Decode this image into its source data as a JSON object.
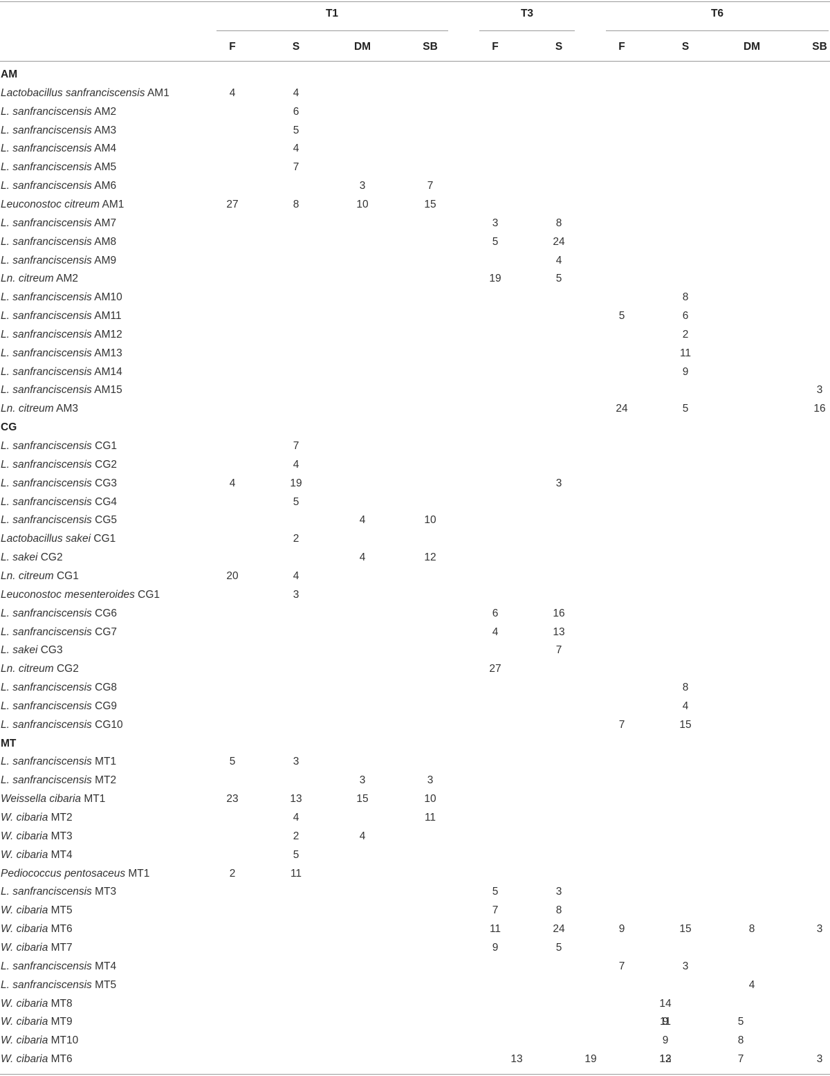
{
  "header": {
    "groups": [
      {
        "label": "T1"
      },
      {
        "label": "T3"
      },
      {
        "label": "T6"
      }
    ],
    "subcols": [
      "F",
      "S",
      "DM",
      "SB",
      "F",
      "S",
      "F",
      "S",
      "DM",
      "SB"
    ]
  },
  "rows": [
    {
      "type": "section",
      "label": "AM"
    },
    {
      "type": "data",
      "italic": "Lactobacillus sanfranciscensis",
      "suffix": " AM1",
      "cells": [
        "4",
        "4",
        "",
        "",
        "",
        "",
        "",
        "",
        "",
        ""
      ]
    },
    {
      "type": "data",
      "italic": "L. sanfranciscensis",
      "suffix": " AM2",
      "cells": [
        "",
        "6",
        "",
        "",
        "",
        "",
        "",
        "",
        "",
        ""
      ]
    },
    {
      "type": "data",
      "italic": "L. sanfranciscensis",
      "suffix": " AM3",
      "cells": [
        "",
        "5",
        "",
        "",
        "",
        "",
        "",
        "",
        "",
        ""
      ]
    },
    {
      "type": "data",
      "italic": "L. sanfranciscensis",
      "suffix": " AM4",
      "cells": [
        "",
        "4",
        "",
        "",
        "",
        "",
        "",
        "",
        "",
        ""
      ]
    },
    {
      "type": "data",
      "italic": "L. sanfranciscensis",
      "suffix": " AM5",
      "cells": [
        "",
        "7",
        "",
        "",
        "",
        "",
        "",
        "",
        "",
        ""
      ]
    },
    {
      "type": "data",
      "italic": "L. sanfranciscensis",
      "suffix": " AM6",
      "cells": [
        "",
        "",
        "3",
        "7",
        "",
        "",
        "",
        "",
        "",
        ""
      ]
    },
    {
      "type": "data",
      "italic": "Leuconostoc citreum",
      "suffix": " AM1",
      "cells": [
        "27",
        "8",
        "10",
        "15",
        "",
        "",
        "",
        "",
        "",
        ""
      ]
    },
    {
      "type": "data",
      "italic": "L. sanfranciscensis",
      "suffix": " AM7",
      "cells": [
        "",
        "",
        "",
        "",
        "3",
        "8",
        "",
        "",
        "",
        ""
      ]
    },
    {
      "type": "data",
      "italic": "L. sanfranciscensis",
      "suffix": " AM8",
      "cells": [
        "",
        "",
        "",
        "",
        "5",
        "24",
        "",
        "",
        "",
        ""
      ]
    },
    {
      "type": "data",
      "italic": "L. sanfranciscensis",
      "suffix": " AM9",
      "cells": [
        "",
        "",
        "",
        "",
        "",
        "4",
        "",
        "",
        "",
        ""
      ]
    },
    {
      "type": "data",
      "italic": "Ln. citreum",
      "suffix": " AM2",
      "cells": [
        "",
        "",
        "",
        "",
        "19",
        "5",
        "",
        "",
        "",
        ""
      ]
    },
    {
      "type": "data",
      "italic": "L. sanfranciscensis",
      "suffix": " AM10",
      "cells": [
        "",
        "",
        "",
        "",
        "",
        "",
        "",
        "8",
        "",
        ""
      ]
    },
    {
      "type": "data",
      "italic": "L. sanfranciscensis",
      "suffix": " AM11",
      "cells": [
        "",
        "",
        "",
        "",
        "",
        "",
        "5",
        "6",
        "",
        ""
      ]
    },
    {
      "type": "data",
      "italic": "L. sanfranciscensis",
      "suffix": " AM12",
      "cells": [
        "",
        "",
        "",
        "",
        "",
        "",
        "",
        "2",
        "",
        ""
      ]
    },
    {
      "type": "data",
      "italic": "L. sanfranciscensis",
      "suffix": " AM13",
      "cells": [
        "",
        "",
        "",
        "",
        "",
        "",
        "",
        "11",
        "",
        ""
      ]
    },
    {
      "type": "data",
      "italic": "L. sanfranciscensis",
      "suffix": " AM14",
      "cells": [
        "",
        "",
        "",
        "",
        "",
        "",
        "",
        "9",
        "",
        ""
      ]
    },
    {
      "type": "data",
      "italic": "L. sanfranciscensis",
      "suffix": " AM15",
      "cells": [
        "",
        "",
        "",
        "",
        "",
        "",
        "",
        "",
        "",
        "3"
      ]
    },
    {
      "type": "data",
      "italic": "Ln. citreum",
      "suffix": " AM3",
      "cells": [
        "",
        "",
        "",
        "",
        "",
        "",
        "24",
        "5",
        "",
        "16"
      ]
    },
    {
      "type": "section",
      "label": "CG"
    },
    {
      "type": "data",
      "italic": "L. sanfranciscensis",
      "suffix": " CG1",
      "cells": [
        "",
        "7",
        "",
        "",
        "",
        "",
        "",
        "",
        "",
        ""
      ]
    },
    {
      "type": "data",
      "italic": "L. sanfranciscensis",
      "suffix": " CG2",
      "cells": [
        "",
        "4",
        "",
        "",
        "",
        "",
        "",
        "",
        "",
        ""
      ]
    },
    {
      "type": "data",
      "italic": "L. sanfranciscensis",
      "suffix": " CG3",
      "cells": [
        "4",
        "19",
        "",
        "",
        "",
        "3",
        "",
        "",
        "",
        ""
      ]
    },
    {
      "type": "data",
      "italic": "L. sanfranciscensis",
      "suffix": " CG4",
      "cells": [
        "",
        "5",
        "",
        "",
        "",
        "",
        "",
        "",
        "",
        ""
      ]
    },
    {
      "type": "data",
      "italic": "L. sanfranciscensis",
      "suffix": " CG5",
      "cells": [
        "",
        "",
        "4",
        "10",
        "",
        "",
        "",
        "",
        "",
        ""
      ]
    },
    {
      "type": "data",
      "italic": "Lactobacillus sakei",
      "suffix": " CG1",
      "cells": [
        "",
        "2",
        "",
        "",
        "",
        "",
        "",
        "",
        "",
        ""
      ]
    },
    {
      "type": "data",
      "italic": "L. sakei",
      "suffix": " CG2",
      "cells": [
        "",
        "",
        "4",
        "12",
        "",
        "",
        "",
        "",
        "",
        ""
      ]
    },
    {
      "type": "data",
      "italic": "Ln. citreum",
      "suffix": " CG1",
      "cells": [
        "20",
        "4",
        "",
        "",
        "",
        "",
        "",
        "",
        "",
        ""
      ]
    },
    {
      "type": "data",
      "italic": "Leuconostoc mesenteroides",
      "suffix": " CG1",
      "cells": [
        "",
        "3",
        "",
        "",
        "",
        "",
        "",
        "",
        "",
        ""
      ]
    },
    {
      "type": "data",
      "italic": "L. sanfranciscensis",
      "suffix": " CG6",
      "cells": [
        "",
        "",
        "",
        "",
        "6",
        "16",
        "",
        "",
        "",
        ""
      ]
    },
    {
      "type": "data",
      "italic": "L. sanfranciscensis",
      "suffix": " CG7",
      "cells": [
        "",
        "",
        "",
        "",
        "4",
        "13",
        "",
        "",
        "",
        ""
      ]
    },
    {
      "type": "data",
      "italic": "L. sakei",
      "suffix": " CG3",
      "cells": [
        "",
        "",
        "",
        "",
        "",
        "7",
        "",
        "",
        "",
        ""
      ]
    },
    {
      "type": "data",
      "italic": "Ln. citreum",
      "suffix": " CG2",
      "cells": [
        "",
        "",
        "",
        "",
        "27",
        "",
        "",
        "",
        "",
        ""
      ]
    },
    {
      "type": "data",
      "italic": "L. sanfranciscensis",
      "suffix": " CG8",
      "cells": [
        "",
        "",
        "",
        "",
        "",
        "",
        "",
        "8",
        "",
        ""
      ]
    },
    {
      "type": "data",
      "italic": "L. sanfranciscensis",
      "suffix": " CG9",
      "cells": [
        "",
        "",
        "",
        "",
        "",
        "",
        "",
        "4",
        "",
        ""
      ]
    },
    {
      "type": "data",
      "italic": "L. sanfranciscensis",
      "suffix": " CG10",
      "cells": [
        "",
        "",
        "",
        "",
        "",
        "",
        "7",
        "15",
        "",
        ""
      ]
    },
    {
      "type": "section",
      "label": "MT"
    },
    {
      "type": "data",
      "italic": "L. sanfranciscensis",
      "suffix": " MT1",
      "cells": [
        "5",
        "3",
        "",
        "",
        "",
        "",
        "",
        "",
        "",
        ""
      ]
    },
    {
      "type": "data",
      "italic": "L. sanfranciscensis",
      "suffix": " MT2",
      "cells": [
        "",
        "",
        "3",
        "3",
        "",
        "",
        "",
        "",
        "",
        ""
      ]
    },
    {
      "type": "data",
      "italic": "Weissella cibaria",
      "suffix": " MT1",
      "cells": [
        "23",
        "13",
        "15",
        "10",
        "",
        "",
        "",
        "",
        "",
        ""
      ]
    },
    {
      "type": "data",
      "italic": "W. cibaria",
      "suffix": " MT2",
      "cells": [
        "",
        "4",
        "",
        "11",
        "",
        "",
        "",
        "",
        "",
        ""
      ]
    },
    {
      "type": "data",
      "italic": "W. cibaria",
      "suffix": " MT3",
      "cells": [
        "",
        "2",
        "4",
        "",
        "",
        "",
        "",
        "",
        "",
        ""
      ]
    },
    {
      "type": "data",
      "italic": "W. cibaria",
      "suffix": " MT4",
      "cells": [
        "",
        "5",
        "",
        "",
        "",
        "",
        "",
        "",
        "",
        ""
      ]
    },
    {
      "type": "data",
      "italic": "Pediococcus pentosaceus",
      "suffix": " MT1",
      "cells": [
        "2",
        "11",
        "",
        "",
        "",
        "",
        "",
        "",
        "",
        ""
      ]
    },
    {
      "type": "data",
      "italic": "L. sanfranciscensis",
      "suffix": " MT3",
      "cells": [
        "",
        "",
        "",
        "",
        "5",
        "3",
        "",
        "",
        "",
        ""
      ]
    },
    {
      "type": "data",
      "italic": "W. cibaria",
      "suffix": " MT5",
      "cells": [
        "",
        "",
        "",
        "",
        "7",
        "8",
        "",
        "",
        "",
        ""
      ]
    },
    {
      "type": "data",
      "italic": "W. cibaria",
      "suffix": " MT6",
      "cells": [
        "",
        "",
        "",
        "",
        "11",
        "24",
        "9",
        "15",
        "8",
        "3"
      ]
    },
    {
      "type": "data",
      "italic": "W. cibaria",
      "suffix": " MT7",
      "cells": [
        "",
        "",
        "",
        "",
        "9",
        "5",
        "",
        "",
        "",
        ""
      ]
    },
    {
      "type": "data",
      "italic": "L. sanfranciscensis",
      "suffix": " MT4",
      "cells": [
        "",
        "",
        "",
        "",
        "",
        "",
        "7",
        "3",
        "",
        ""
      ]
    },
    {
      "type": "data",
      "italic": "L. sanfranciscensis",
      "suffix": " MT5",
      "cells": [
        "",
        "",
        "",
        "",
        "",
        "",
        "",
        "",
        "4",
        ""
      ]
    },
    {
      "type": "shifted",
      "italic": "W. cibaria",
      "suffix": " MT8",
      "cells": [
        "",
        "",
        "",
        "",
        "",
        "",
        "",
        "14",
        "",
        ""
      ]
    },
    {
      "type": "shifted",
      "italic": "W. cibaria",
      "suffix": " MT9",
      "cells": [
        "",
        "",
        "",
        "",
        "",
        "",
        "9",
        "11",
        "5",
        ""
      ]
    },
    {
      "type": "shifted",
      "italic": "W. cibaria",
      "suffix": " MT10",
      "cells": [
        "",
        "",
        "",
        "",
        "",
        "",
        "9",
        "",
        "8",
        ""
      ]
    },
    {
      "type": "shifted",
      "italic": "W. cibaria",
      "suffix": " MT6",
      "cells": [
        "",
        "",
        "",
        "",
        "13",
        "19",
        "12",
        "13",
        "7",
        "3"
      ]
    }
  ]
}
